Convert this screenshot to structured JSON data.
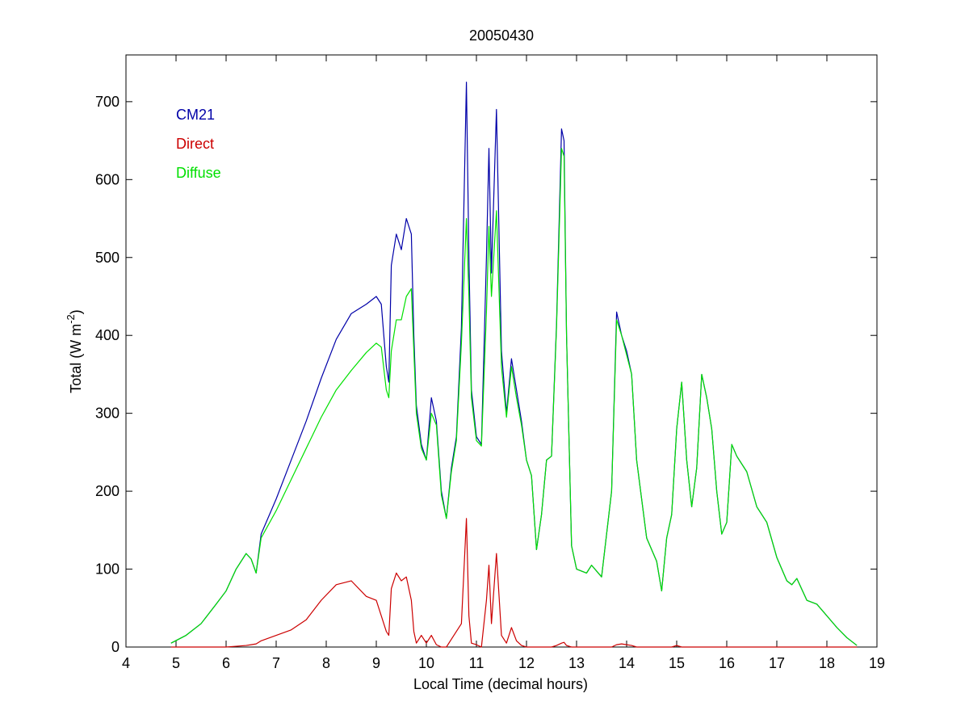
{
  "chart_data": {
    "type": "line",
    "title": "20050430",
    "xlabel": "Local Time (decimal hours)",
    "ylabel": [
      "Total (W m",
      "-2",
      ")"
    ],
    "legend": "upper left",
    "xlim": [
      4,
      19
    ],
    "xticks": [
      4,
      5,
      6,
      7,
      8,
      9,
      10,
      11,
      12,
      13,
      14,
      15,
      16,
      17,
      18,
      19
    ],
    "ylim": [
      0,
      760
    ],
    "yticks": [
      0,
      100,
      200,
      300,
      400,
      500,
      600,
      700
    ],
    "x": [
      4.9,
      5.2,
      5.5,
      5.8,
      6.0,
      6.2,
      6.4,
      6.5,
      6.6,
      6.7,
      7.0,
      7.3,
      7.6,
      7.9,
      8.2,
      8.5,
      8.8,
      9.0,
      9.1,
      9.2,
      9.25,
      9.3,
      9.4,
      9.5,
      9.6,
      9.7,
      9.75,
      9.8,
      9.9,
      10.0,
      10.1,
      10.2,
      10.3,
      10.4,
      10.5,
      10.6,
      10.7,
      10.8,
      10.85,
      10.9,
      11.0,
      11.1,
      11.2,
      11.25,
      11.3,
      11.4,
      11.5,
      11.6,
      11.7,
      11.8,
      11.9,
      12.0,
      12.1,
      12.2,
      12.3,
      12.4,
      12.5,
      12.6,
      12.7,
      12.75,
      12.8,
      12.9,
      13.0,
      13.2,
      13.3,
      13.5,
      13.7,
      13.8,
      13.9,
      14.0,
      14.1,
      14.2,
      14.4,
      14.6,
      14.7,
      14.8,
      14.9,
      15.0,
      15.1,
      15.2,
      15.3,
      15.4,
      15.5,
      15.6,
      15.7,
      15.8,
      15.9,
      16.0,
      16.1,
      16.2,
      16.4,
      16.6,
      16.8,
      17.0,
      17.2,
      17.3,
      17.4,
      17.6,
      17.8,
      18.0,
      18.2,
      18.4,
      18.6
    ],
    "series": [
      {
        "name": "CM21",
        "color": "#0000a8",
        "values": [
          5,
          15,
          30,
          55,
          72,
          100,
          120,
          113,
          95,
          145,
          190,
          240,
          290,
          345,
          395,
          428,
          440,
          450,
          440,
          360,
          340,
          490,
          530,
          510,
          550,
          530,
          400,
          310,
          260,
          240,
          320,
          290,
          200,
          165,
          230,
          270,
          410,
          725,
          500,
          330,
          270,
          260,
          500,
          640,
          480,
          690,
          380,
          300,
          370,
          330,
          290,
          240,
          220,
          125,
          170,
          240,
          245,
          415,
          665,
          650,
          400,
          130,
          100,
          95,
          105,
          90,
          200,
          430,
          400,
          380,
          350,
          240,
          140,
          110,
          72,
          140,
          170,
          280,
          340,
          240,
          180,
          230,
          350,
          320,
          280,
          200,
          145,
          160,
          260,
          245,
          225,
          180,
          160,
          115,
          85,
          80,
          88,
          60,
          55,
          40,
          25,
          12,
          2
        ]
      },
      {
        "name": "Direct",
        "color": "#cc0000",
        "values": [
          0,
          0,
          0,
          0,
          0,
          1,
          2,
          3,
          4,
          8,
          15,
          22,
          35,
          60,
          80,
          85,
          65,
          60,
          40,
          20,
          15,
          75,
          95,
          85,
          90,
          60,
          20,
          5,
          15,
          5,
          15,
          3,
          0,
          0,
          10,
          20,
          30,
          165,
          40,
          5,
          3,
          0,
          60,
          105,
          30,
          120,
          15,
          5,
          25,
          8,
          2,
          0,
          0,
          0,
          0,
          0,
          0,
          2,
          5,
          6,
          2,
          0,
          0,
          0,
          0,
          0,
          0,
          3,
          4,
          3,
          2,
          0,
          0,
          0,
          0,
          0,
          0,
          2,
          0,
          0,
          0,
          0,
          0,
          0,
          0,
          0,
          0,
          0,
          0,
          0,
          0,
          0,
          0,
          0,
          0,
          0,
          0,
          0,
          0,
          0,
          0,
          0,
          0
        ]
      },
      {
        "name": "Diffuse",
        "color": "#00e000",
        "values": [
          5,
          15,
          30,
          55,
          72,
          100,
          120,
          113,
          95,
          140,
          175,
          215,
          255,
          295,
          330,
          355,
          378,
          390,
          385,
          330,
          320,
          380,
          420,
          420,
          450,
          460,
          380,
          300,
          255,
          240,
          300,
          285,
          195,
          165,
          225,
          265,
          390,
          550,
          450,
          320,
          265,
          258,
          430,
          540,
          450,
          560,
          360,
          295,
          360,
          320,
          285,
          240,
          220,
          125,
          170,
          240,
          245,
          410,
          640,
          630,
          400,
          130,
          100,
          95,
          105,
          90,
          200,
          420,
          400,
          375,
          350,
          240,
          140,
          110,
          72,
          140,
          170,
          280,
          340,
          240,
          180,
          230,
          350,
          320,
          280,
          200,
          145,
          160,
          260,
          245,
          225,
          180,
          160,
          115,
          85,
          80,
          88,
          60,
          55,
          40,
          25,
          12,
          2
        ]
      }
    ]
  }
}
